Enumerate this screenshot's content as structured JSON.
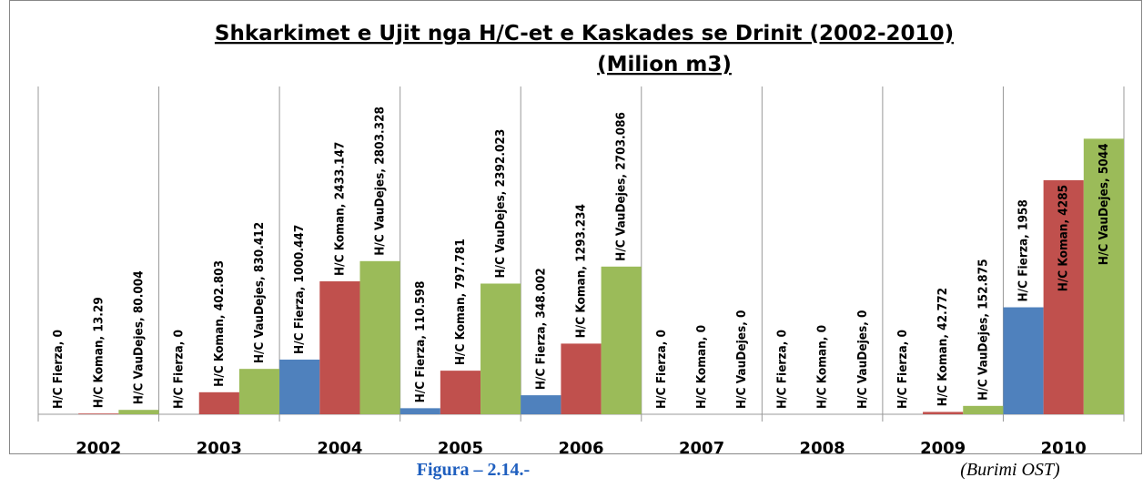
{
  "chart_data": {
    "type": "bar",
    "title": "Shkarkimet e Ujit nga H/C-et e Kaskades se Drinit  (2002-2010)",
    "subtitle": "(Milion m3)",
    "categories": [
      "2002",
      "2003",
      "2004",
      "2005",
      "2006",
      "2007",
      "2008",
      "2009",
      "2010"
    ],
    "series": [
      {
        "color": "#4f81bd",
        "values": [
          0,
          0,
          1000.447,
          110.598,
          348.002,
          0,
          0,
          0,
          1958
        ],
        "value_labels": [
          "H/C Fierza, 0",
          "H/C Fierza, 0",
          "H/C Fierza, 1000.447",
          "H/C Fierza, 110.598",
          "H/C Fierza, 348.002",
          "H/C Fierza, 0",
          "H/C Fierza, 0",
          "H/C Fierza, 0",
          "H/C Fierza, 1958"
        ]
      },
      {
        "color": "#c0504d",
        "values": [
          13.29,
          402.803,
          2433.147,
          797.781,
          1293.234,
          0,
          0,
          42.772,
          4285
        ],
        "value_labels": [
          "H/C Koman, 13.29",
          "H/C Koman, 402.803",
          "H/C Koman, 2433.147",
          "H/C Koman, 797.781",
          "H/C Koman, 1293.234",
          "H/C Koman, 0",
          "H/C Koman, 0",
          "H/C Koman, 42.772",
          "H/C Koman, 4285"
        ]
      },
      {
        "color": "#9bbb59",
        "values": [
          80.004,
          830.412,
          2803.328,
          2392.023,
          2703.086,
          0,
          0,
          152.875,
          5044
        ],
        "value_labels": [
          "H/C VauDejes, 80.004",
          "H/C VauDejes, 830.412",
          "H/C VauDejes, 2803.328",
          "H/C VauDejes, 2392.023",
          "H/C VauDejes, 2703.086",
          "H/C VauDejes, 0",
          "H/C VauDejes, 0",
          "H/C VauDejes, 152.875",
          "H/C VauDejes, 5044"
        ]
      }
    ],
    "ylim": [
      0,
      6000
    ]
  },
  "caption": {
    "figure": "Figura – 2.14.-",
    "source": "(Burimi OST)"
  }
}
